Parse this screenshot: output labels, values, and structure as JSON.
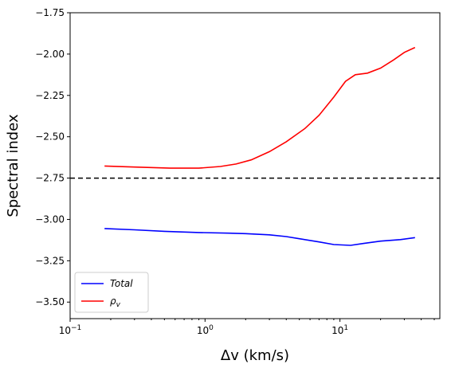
{
  "chart_data": {
    "type": "line",
    "xlabel": "Δv (km/s)",
    "ylabel": "Spectral index",
    "xscale": "log",
    "xlim": [
      0.1,
      55
    ],
    "ylim": [
      -3.6,
      -1.75
    ],
    "grid": false,
    "legend_position": "lower-left",
    "x_ticks": [
      {
        "value": 0.1,
        "base": "10",
        "exp": "−1"
      },
      {
        "value": 1,
        "base": "10",
        "exp": "0"
      },
      {
        "value": 10,
        "base": "10",
        "exp": "1"
      }
    ],
    "y_ticks": [
      {
        "value": -1.75,
        "label": "−1.75"
      },
      {
        "value": -2.0,
        "label": "−2.00"
      },
      {
        "value": -2.25,
        "label": "−2.25"
      },
      {
        "value": -2.5,
        "label": "−2.50"
      },
      {
        "value": -2.75,
        "label": "−2.75"
      },
      {
        "value": -3.0,
        "label": "−3.00"
      },
      {
        "value": -3.25,
        "label": "−3.25"
      },
      {
        "value": -3.5,
        "label": "−3.50"
      }
    ],
    "reference_line": {
      "y": -2.75,
      "style": "dashed",
      "color": "#000000"
    },
    "series": [
      {
        "name": "Total",
        "color": "#0000ff",
        "x": [
          0.18,
          0.3,
          0.5,
          0.9,
          1.5,
          2.0,
          3.0,
          4.0,
          5.0,
          7.0,
          9.0,
          12.0,
          15.0,
          20.0,
          28.0,
          36.0
        ],
        "y": [
          -3.055,
          -3.063,
          -3.072,
          -3.079,
          -3.083,
          -3.086,
          -3.093,
          -3.104,
          -3.117,
          -3.136,
          -3.152,
          -3.157,
          -3.145,
          -3.131,
          -3.122,
          -3.11
        ]
      },
      {
        "name": "ρ",
        "name_subscript": "v",
        "color": "#ff0000",
        "x": [
          0.18,
          0.3,
          0.55,
          0.9,
          1.3,
          1.7,
          2.2,
          3.0,
          4.0,
          5.5,
          7.0,
          9.0,
          11.0,
          13.0,
          16.0,
          20.0,
          25.0,
          30.0,
          36.0
        ],
        "y": [
          -2.677,
          -2.683,
          -2.69,
          -2.69,
          -2.68,
          -2.665,
          -2.64,
          -2.59,
          -2.53,
          -2.45,
          -2.37,
          -2.26,
          -2.165,
          -2.125,
          -2.115,
          -2.085,
          -2.035,
          -1.99,
          -1.96
        ]
      }
    ]
  }
}
